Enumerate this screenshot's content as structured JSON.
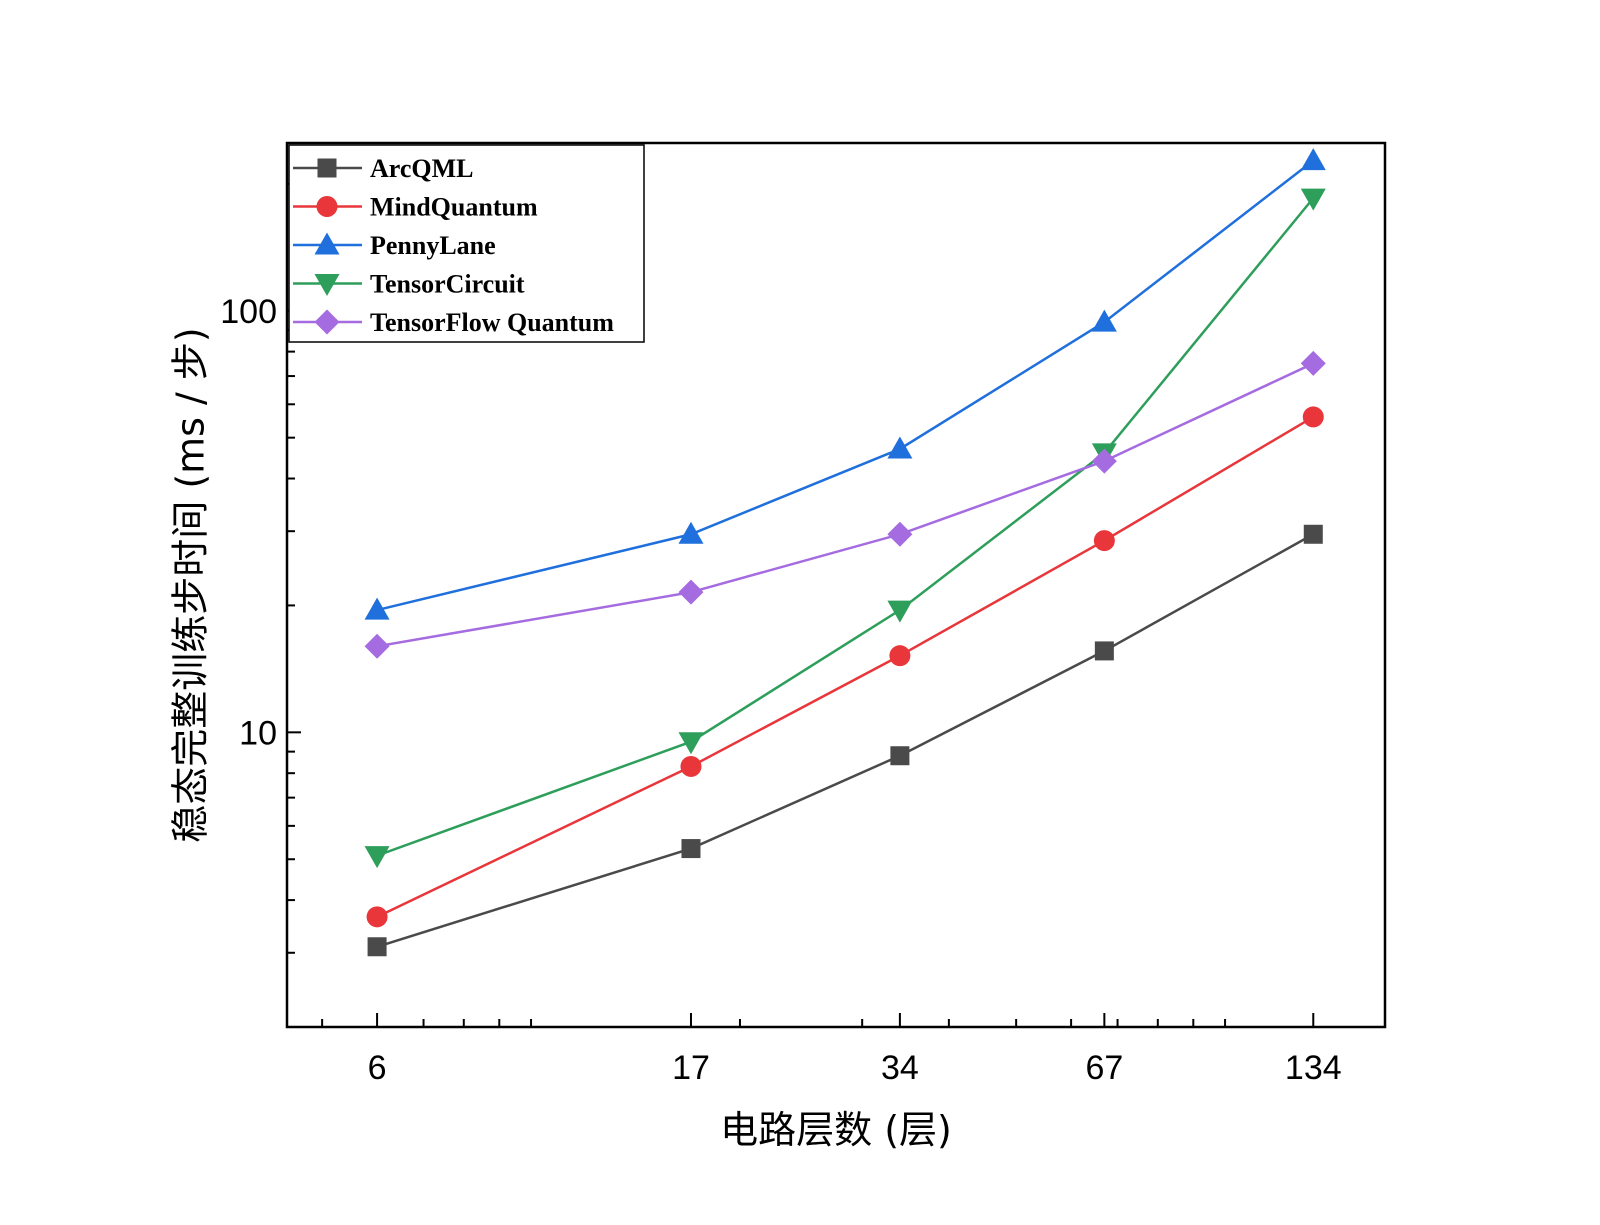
{
  "chart_data": {
    "type": "line",
    "title": "",
    "xlabel": "电路层数 (层)",
    "ylabel": "稳态完整训练步时间 (ms / 步)",
    "x": [
      6,
      17,
      34,
      67,
      134
    ],
    "x_tick_labels": [
      "6",
      "17",
      "34",
      "67",
      "134"
    ],
    "x_scale": "log",
    "y_scale": "log",
    "ylim": [
      2.0,
      250
    ],
    "y_tick_labels": [
      "10",
      "100"
    ],
    "grid": false,
    "legend_position": "top-left",
    "series": [
      {
        "name": "ArcQML",
        "marker": "square",
        "color": "#4a4a4a",
        "values": [
          3.1,
          5.3,
          8.8,
          15.6,
          29.5
        ]
      },
      {
        "name": "MindQuantum",
        "marker": "circle",
        "color": "#e8363b",
        "values": [
          3.65,
          8.3,
          15.2,
          28.5,
          56.0
        ]
      },
      {
        "name": "PennyLane",
        "marker": "triangle-up",
        "color": "#1f6fdc",
        "values": [
          19.5,
          29.5,
          47.0,
          94.0,
          227.0
        ]
      },
      {
        "name": "TensorCircuit",
        "marker": "triangle-down",
        "color": "#2e9e5b",
        "values": [
          5.1,
          9.5,
          19.5,
          46.0,
          185.0
        ]
      },
      {
        "name": "TensorFlow Quantum",
        "marker": "diamond",
        "color": "#a56be0",
        "values": [
          16.0,
          21.5,
          29.5,
          44.0,
          75.0
        ]
      }
    ]
  }
}
